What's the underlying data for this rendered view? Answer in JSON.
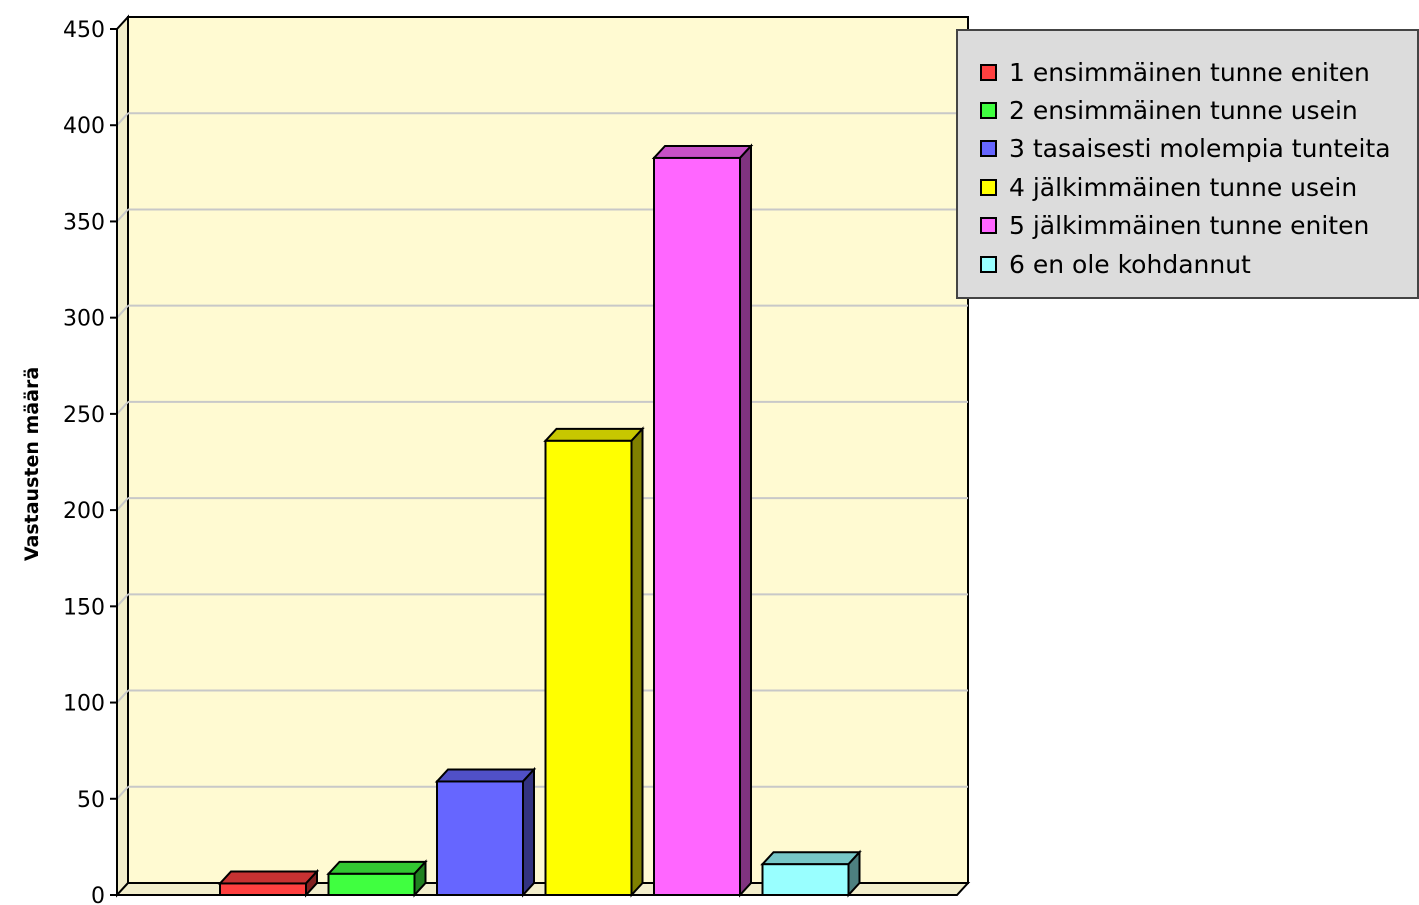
{
  "chart_data": {
    "type": "bar",
    "ylabel": "Vastausten määrä",
    "ylim": [
      0,
      450
    ],
    "yticks": [
      "0",
      "50",
      "100",
      "150",
      "200",
      "250",
      "300",
      "350",
      "400",
      "450"
    ],
    "grid": true,
    "legend_position": "top-right",
    "plot_background": "#fffad2",
    "categories": [
      "1 ensimmäinen tunne eniten",
      "2 ensimmäinen tunne usein",
      "3 tasaisesti molempia tunteita",
      "4 jälkimmäinen tunne usein",
      "5 jälkimmäinen tunne eniten",
      "6 en ole kohdannut"
    ],
    "values": [
      6,
      11,
      59,
      236,
      383,
      16
    ],
    "colors": [
      "#ff4040",
      "#40ff40",
      "#6666ff",
      "#ffff00",
      "#ff66ff",
      "#99ffff"
    ]
  }
}
